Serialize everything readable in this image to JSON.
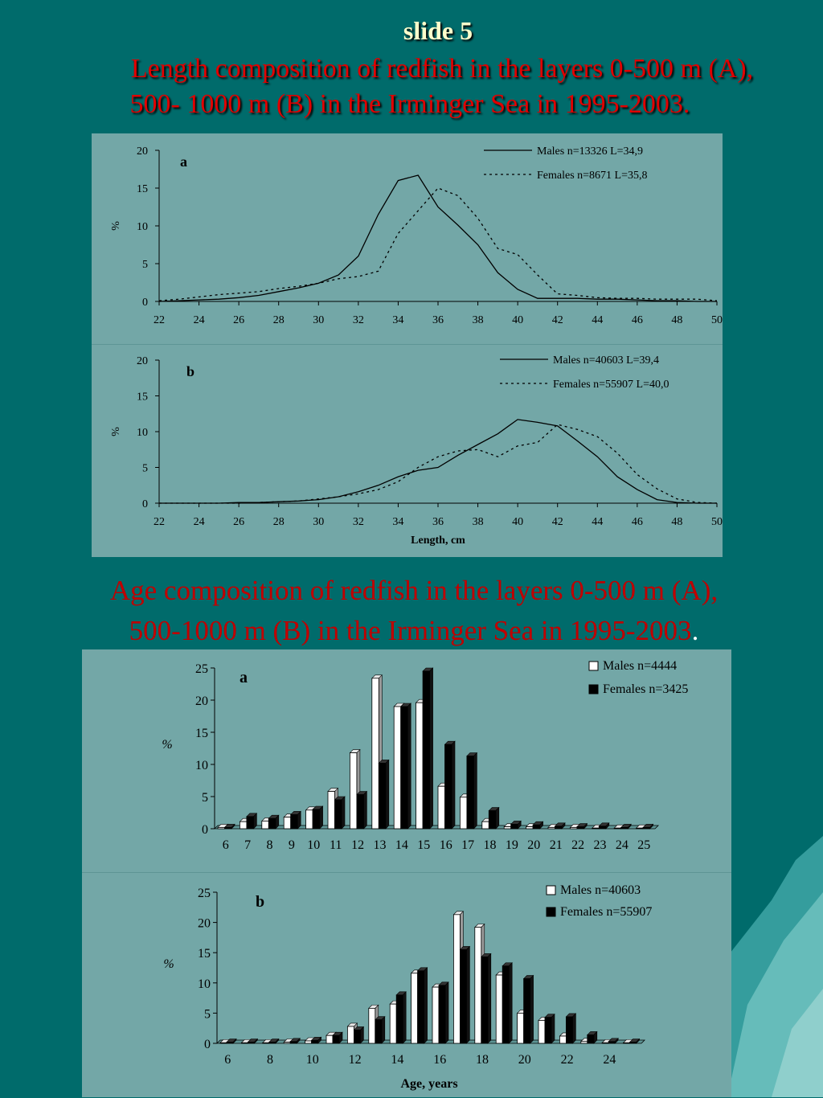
{
  "slide": {
    "number": "slide 5",
    "length_title_line1": "Length composition of  redfish in the layers 0-500 m (A),",
    "length_title_line2": "500- 1000 m (B) in the Irminger Sea in 1995-2003.",
    "age_title_line1": "Age composition of  redfish in the layers 0-500 m (A),",
    "age_title_line2": "500-1000 m (B)  in the Irminger Sea in 1995-2003",
    "age_title_end": "."
  },
  "colors": {
    "background": "#006b6b",
    "panel": "#73a7a7",
    "title_red": "#e00000",
    "slide_number": "#ffffcc"
  },
  "chart_data": [
    {
      "type": "line",
      "panel_label": "a",
      "ylabel": "%",
      "xlabel": "",
      "xlim": [
        22,
        50
      ],
      "ylim": [
        0,
        20
      ],
      "x_ticks": [
        22,
        24,
        26,
        28,
        30,
        32,
        34,
        36,
        38,
        40,
        42,
        44,
        46,
        48,
        50
      ],
      "y_ticks": [
        0,
        5,
        10,
        15,
        20
      ],
      "legend_position": "top-right",
      "x": [
        22,
        23,
        24,
        25,
        26,
        27,
        28,
        29,
        30,
        31,
        32,
        33,
        34,
        35,
        36,
        37,
        38,
        39,
        40,
        41,
        42,
        43,
        44,
        45,
        46,
        47,
        48,
        49,
        50
      ],
      "series": [
        {
          "name": "Males n=13326 L=34,9",
          "style": "solid",
          "values": [
            0,
            0.1,
            0.2,
            0.3,
            0.5,
            0.8,
            1.3,
            1.8,
            2.4,
            3.5,
            6.0,
            11.5,
            16.0,
            16.7,
            12.5,
            10.1,
            7.5,
            3.8,
            1.6,
            0.4,
            0.4,
            0.4,
            0.3,
            0.3,
            0.2,
            0.1,
            0.1,
            0,
            0
          ]
        },
        {
          "name": "Females n=8671 L=35,8",
          "style": "dotted",
          "values": [
            0.1,
            0.3,
            0.6,
            0.9,
            1.1,
            1.3,
            1.7,
            2.0,
            2.4,
            3.0,
            3.3,
            4.0,
            9.0,
            12.0,
            15.0,
            14.0,
            11.0,
            7.0,
            6.2,
            3.5,
            1.0,
            0.8,
            0.5,
            0.4,
            0.4,
            0.3,
            0.3,
            0.3,
            0.1
          ]
        }
      ]
    },
    {
      "type": "line",
      "panel_label": "b",
      "ylabel": "%",
      "xlabel": "Length, cm",
      "xlim": [
        22,
        50
      ],
      "ylim": [
        0,
        20
      ],
      "x_ticks": [
        22,
        24,
        26,
        28,
        30,
        32,
        34,
        36,
        38,
        40,
        42,
        44,
        46,
        48,
        50
      ],
      "y_ticks": [
        0,
        5,
        10,
        15,
        20
      ],
      "legend_position": "top-right",
      "x": [
        22,
        23,
        24,
        25,
        26,
        27,
        28,
        29,
        30,
        31,
        32,
        33,
        34,
        35,
        36,
        37,
        38,
        39,
        40,
        41,
        42,
        43,
        44,
        45,
        46,
        47,
        48,
        49,
        50
      ],
      "series": [
        {
          "name": "Males n=40603 L=39,4",
          "style": "solid",
          "values": [
            0,
            0,
            0,
            0,
            0.1,
            0.1,
            0.2,
            0.3,
            0.5,
            0.9,
            1.6,
            2.5,
            3.7,
            4.6,
            5.0,
            6.7,
            8.2,
            9.7,
            11.7,
            11.3,
            10.8,
            8.7,
            6.5,
            3.7,
            1.9,
            0.5,
            0.1,
            0,
            0
          ]
        },
        {
          "name": "Females n=55907 L=40,0",
          "style": "dotted",
          "values": [
            0,
            0,
            0,
            0,
            0,
            0.1,
            0.2,
            0.3,
            0.6,
            0.9,
            1.3,
            1.9,
            3.0,
            5.0,
            6.5,
            7.3,
            7.5,
            6.5,
            8.0,
            8.5,
            11.0,
            10.3,
            9.3,
            7.0,
            4.0,
            2.0,
            0.6,
            0.1,
            0
          ]
        }
      ]
    },
    {
      "type": "bar",
      "panel_label": "a",
      "ylabel": "%",
      "xlabel": "",
      "ylim": [
        0,
        25
      ],
      "y_ticks": [
        0,
        5,
        10,
        15,
        20,
        25
      ],
      "legend_position": "top-right",
      "categories": [
        "6",
        "7",
        "8",
        "9",
        "10",
        "11",
        "12",
        "13",
        "14",
        "15",
        "16",
        "17",
        "18",
        "19",
        "20",
        "21",
        "22",
        "23",
        "24",
        "25"
      ],
      "x_tick_labels": [
        "6",
        "7",
        "8",
        "9",
        "10",
        "11",
        "12",
        "13",
        "14",
        "15",
        "16",
        "17",
        "18",
        "19",
        "20",
        "21",
        "22",
        "23",
        "24",
        "25"
      ],
      "series": [
        {
          "name": "Males n=4444",
          "fill": "#ffffff",
          "values": [
            0.2,
            1.1,
            1.2,
            1.8,
            2.9,
            5.8,
            11.8,
            23.4,
            19.0,
            19.6,
            6.6,
            4.9,
            1.1,
            0.3,
            0.3,
            0.2,
            0.2,
            0.1,
            0.1,
            0.1
          ]
        },
        {
          "name": "Females n=3425",
          "fill": "#000000",
          "values": [
            0.2,
            1.9,
            1.6,
            2.2,
            3.0,
            4.5,
            5.3,
            10.2,
            19.0,
            24.5,
            13.1,
            11.3,
            2.8,
            0.7,
            0.6,
            0.4,
            0.3,
            0.4,
            0.2,
            0.2
          ]
        }
      ]
    },
    {
      "type": "bar",
      "panel_label": "b",
      "ylabel": "%",
      "xlabel": "Age, years",
      "ylim": [
        0,
        25
      ],
      "y_ticks": [
        0,
        5,
        10,
        15,
        20,
        25
      ],
      "legend_position": "top-right",
      "categories": [
        "6",
        "7",
        "8",
        "9",
        "10",
        "11",
        "12",
        "13",
        "14",
        "15",
        "16",
        "17",
        "18",
        "19",
        "20",
        "21",
        "22",
        "23",
        "24",
        "25"
      ],
      "x_tick_labels": [
        "6",
        "",
        "8",
        "",
        "10",
        "",
        "12",
        "",
        "14",
        "",
        "16",
        "",
        "18",
        "",
        "20",
        "",
        "22",
        "",
        "24",
        ""
      ],
      "series": [
        {
          "name": "Males n=40603",
          "fill": "#ffffff",
          "values": [
            0.1,
            0.1,
            0.1,
            0.2,
            0.4,
            1.3,
            2.8,
            5.8,
            6.5,
            11.6,
            9.3,
            21.3,
            19.2,
            11.3,
            5.0,
            3.8,
            1.2,
            0.3,
            0.1,
            0.1
          ]
        },
        {
          "name": "Females n=55907",
          "fill": "#000000",
          "values": [
            0.2,
            0.2,
            0.2,
            0.3,
            0.5,
            1.3,
            2.2,
            3.9,
            8.0,
            12.0,
            9.6,
            15.5,
            14.3,
            12.8,
            10.7,
            4.3,
            4.4,
            1.4,
            0.3,
            0.2
          ]
        }
      ]
    }
  ]
}
